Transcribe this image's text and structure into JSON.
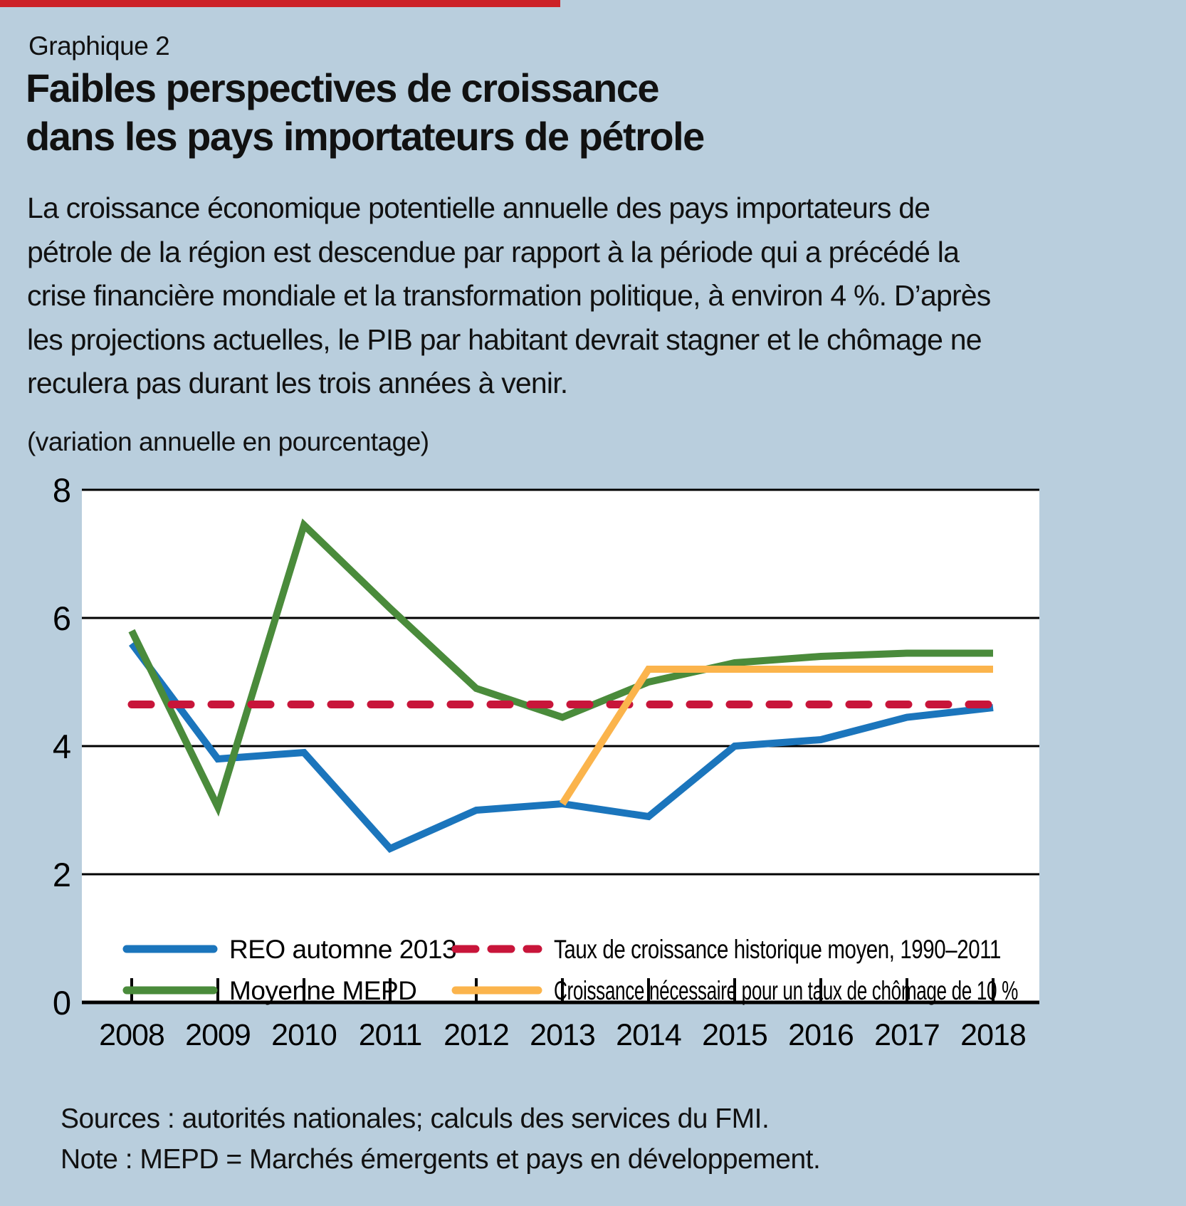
{
  "page": {
    "background": "#b9cedd",
    "accent_bar_color": "#cc2127",
    "plot_background": "#ffffff"
  },
  "header": {
    "kicker": "Graphique 2",
    "title_lines": [
      "Faibles perspectives de croissance",
      "dans les pays importateurs de pétrole"
    ],
    "intro_lines": [
      "La croissance économique potentielle annuelle des pays importateurs de",
      "pétrole de la région est descendue par rapport à la période qui a précédé la",
      "crise financière mondiale et la transformation politique, à environ 4 %. D’après",
      "les projections actuelles, le PIB par habitant devrait stagner et le chômage ne",
      "reculera pas durant les trois années à venir."
    ],
    "units_label": "(variation annuelle en pourcentage)"
  },
  "chart_data": {
    "type": "line",
    "x": [
      2008,
      2009,
      2010,
      2011,
      2012,
      2013,
      2014,
      2015,
      2016,
      2017,
      2018
    ],
    "xlabel": "",
    "ylabel": "",
    "ylim": [
      0,
      8
    ],
    "yticks": [
      0,
      2,
      4,
      6,
      8
    ],
    "grid": true,
    "legend_position": "bottom-inside",
    "series": [
      {
        "name": "REO automne 2013",
        "color": "#1b75bc",
        "style": "solid",
        "values": [
          5.6,
          3.8,
          3.9,
          2.4,
          3.0,
          3.1,
          2.9,
          4.0,
          4.1,
          4.45,
          4.6
        ]
      },
      {
        "name": "Moyenne MEPD",
        "color": "#4a8b3b",
        "style": "solid",
        "values": [
          5.8,
          3.05,
          7.45,
          6.15,
          4.9,
          4.45,
          5.0,
          5.3,
          5.4,
          5.45,
          5.45
        ]
      },
      {
        "name": "Taux de croissance historique moyen, 1990–2011",
        "color": "#c8153a",
        "style": "dashed",
        "values": [
          4.65,
          4.65,
          4.65,
          4.65,
          4.65,
          4.65,
          4.65,
          4.65,
          4.65,
          4.65,
          4.65
        ]
      },
      {
        "name": "Croissance nécessaire pour un taux de chômage de 10 %",
        "color": "#fbb44c",
        "style": "solid",
        "values": [
          null,
          null,
          null,
          null,
          null,
          3.1,
          5.2,
          5.2,
          5.2,
          5.2,
          5.2
        ]
      }
    ]
  },
  "footer": {
    "sources": "Sources : autorités nationales; calculs des services du FMI.",
    "note": "Note : MEPD = Marchés émergents et pays en développement."
  }
}
